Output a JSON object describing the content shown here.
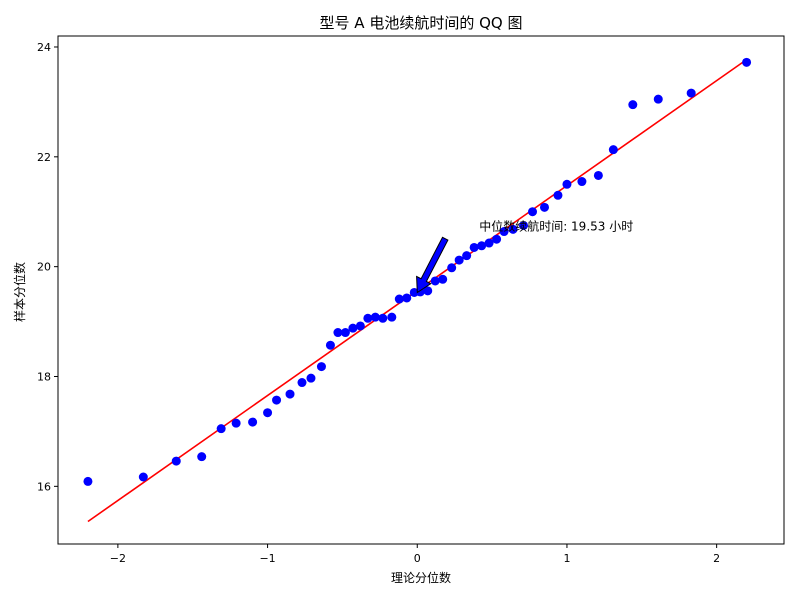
{
  "chart_data": {
    "type": "scatter",
    "title": "型号 A 电池续航时间的 QQ 图",
    "xlabel": "理论分位数",
    "ylabel": "样本分位数",
    "xlim": [
      -2.4,
      2.45
    ],
    "ylim": [
      14.95,
      24.2
    ],
    "xticks": [
      -2,
      -1,
      0,
      1,
      2
    ],
    "xtick_labels": [
      "−2",
      "−1",
      "0",
      "1",
      "2"
    ],
    "yticks": [
      16,
      18,
      20,
      22,
      24
    ],
    "ytick_labels": [
      "16",
      "18",
      "20",
      "22",
      "24"
    ],
    "grid": false,
    "series": [
      {
        "kind": "points",
        "color": "#0000ff",
        "x": [
          -2.2,
          -1.83,
          -1.61,
          -1.44,
          -1.31,
          -1.21,
          -1.1,
          -1.0,
          -0.94,
          -0.85,
          -0.77,
          -0.71,
          -0.64,
          -0.58,
          -0.53,
          -0.48,
          -0.43,
          -0.38,
          -0.33,
          -0.28,
          -0.23,
          -0.17,
          -0.12,
          -0.07,
          -0.02,
          0.02,
          0.07,
          0.12,
          0.17,
          0.23,
          0.28,
          0.33,
          0.38,
          0.43,
          0.48,
          0.53,
          0.58,
          0.64,
          0.71,
          0.77,
          0.85,
          0.94,
          1.0,
          1.1,
          1.21,
          1.31,
          1.44,
          1.61,
          1.83,
          2.2
        ],
        "y": [
          16.09,
          16.17,
          16.46,
          16.54,
          17.05,
          17.15,
          17.17,
          17.34,
          17.57,
          17.68,
          17.89,
          17.97,
          18.18,
          18.57,
          18.8,
          18.8,
          18.88,
          18.92,
          19.06,
          19.08,
          19.06,
          19.08,
          19.41,
          19.43,
          19.53,
          19.54,
          19.56,
          19.74,
          19.77,
          19.98,
          20.12,
          20.2,
          20.35,
          20.38,
          20.43,
          20.5,
          20.64,
          20.68,
          20.75,
          21.0,
          21.08,
          21.3,
          21.5,
          21.55,
          21.66,
          22.13,
          22.95,
          23.05,
          23.16,
          23.72
        ]
      },
      {
        "kind": "line",
        "color": "#ff0000",
        "x": [
          -2.2,
          2.2
        ],
        "y": [
          15.36,
          23.77
        ]
      }
    ],
    "annotation": {
      "text": "中位数续航时间: 19.53 小时",
      "point": [
        0.0,
        19.53
      ],
      "text_pos": [
        0.2,
        20.6
      ],
      "arrow_color": "#0000ff"
    }
  }
}
